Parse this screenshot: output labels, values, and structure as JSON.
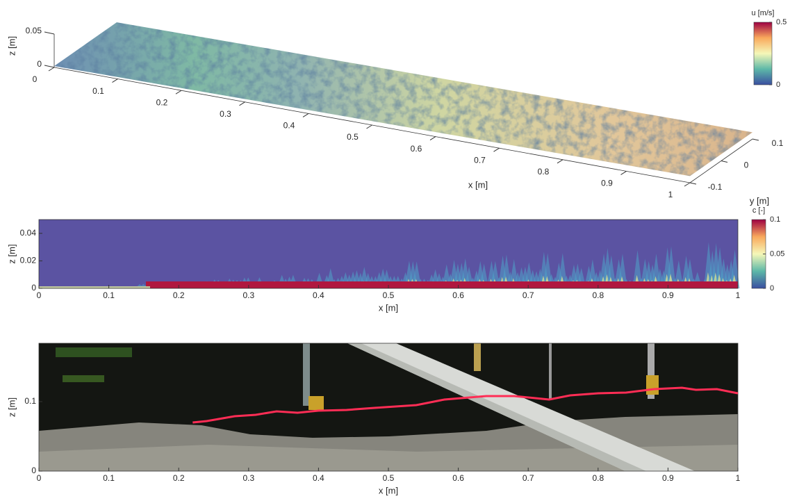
{
  "chart_data": [
    {
      "type": "surface3d",
      "xlabel": "x [m]",
      "ylabel": "y [m]",
      "zlabel": "z [m]",
      "xlim": [
        0,
        1
      ],
      "ylim": [
        -0.1,
        0.1
      ],
      "zlim": [
        0,
        0.05
      ],
      "xticks": [
        0,
        0.1,
        0.2,
        0.3,
        0.4,
        0.5,
        0.6,
        0.7,
        0.8,
        0.9,
        1
      ],
      "yticks": [
        -0.1,
        0,
        0.1
      ],
      "zticks": [
        0,
        0.05
      ],
      "colorbar": {
        "title": "u [m/s]",
        "lim": [
          0,
          0.5
        ],
        "ticks": [
          0,
          0.5
        ]
      }
    },
    {
      "type": "contour",
      "xlabel": "x [m]",
      "ylabel": "z [m]",
      "xlim": [
        0,
        1
      ],
      "ylim": [
        0,
        0.05
      ],
      "xticks": [
        0,
        0.1,
        0.2,
        0.3,
        0.4,
        0.5,
        0.6,
        0.7,
        0.8,
        0.9,
        1
      ],
      "yticks": [
        0,
        0.02,
        0.04
      ],
      "colorbar": {
        "title": "c [-]",
        "lim": [
          0,
          0.1
        ],
        "ticks": [
          0,
          0.05,
          0.1
        ]
      }
    },
    {
      "type": "line",
      "xlabel": "x [m]",
      "ylabel": "z [m]",
      "xlim": [
        0,
        1
      ],
      "ylim": [
        0,
        0.184
      ],
      "xticks": [
        0,
        0.1,
        0.2,
        0.3,
        0.4,
        0.5,
        0.6,
        0.7,
        0.8,
        0.9,
        1
      ],
      "yticks": [
        0,
        0.1
      ],
      "series": [
        {
          "color": "#ff2d55",
          "x": [
            0.22,
            0.24,
            0.28,
            0.31,
            0.34,
            0.37,
            0.4,
            0.44,
            0.48,
            0.54,
            0.58,
            0.64,
            0.68,
            0.73,
            0.76,
            0.8,
            0.84,
            0.88,
            0.92,
            0.94,
            0.97,
            1.0
          ],
          "values": [
            0.07,
            0.072,
            0.079,
            0.081,
            0.086,
            0.084,
            0.087,
            0.088,
            0.091,
            0.095,
            0.103,
            0.108,
            0.108,
            0.103,
            0.109,
            0.112,
            0.113,
            0.118,
            0.12,
            0.117,
            0.118,
            0.112
          ]
        }
      ]
    }
  ]
}
